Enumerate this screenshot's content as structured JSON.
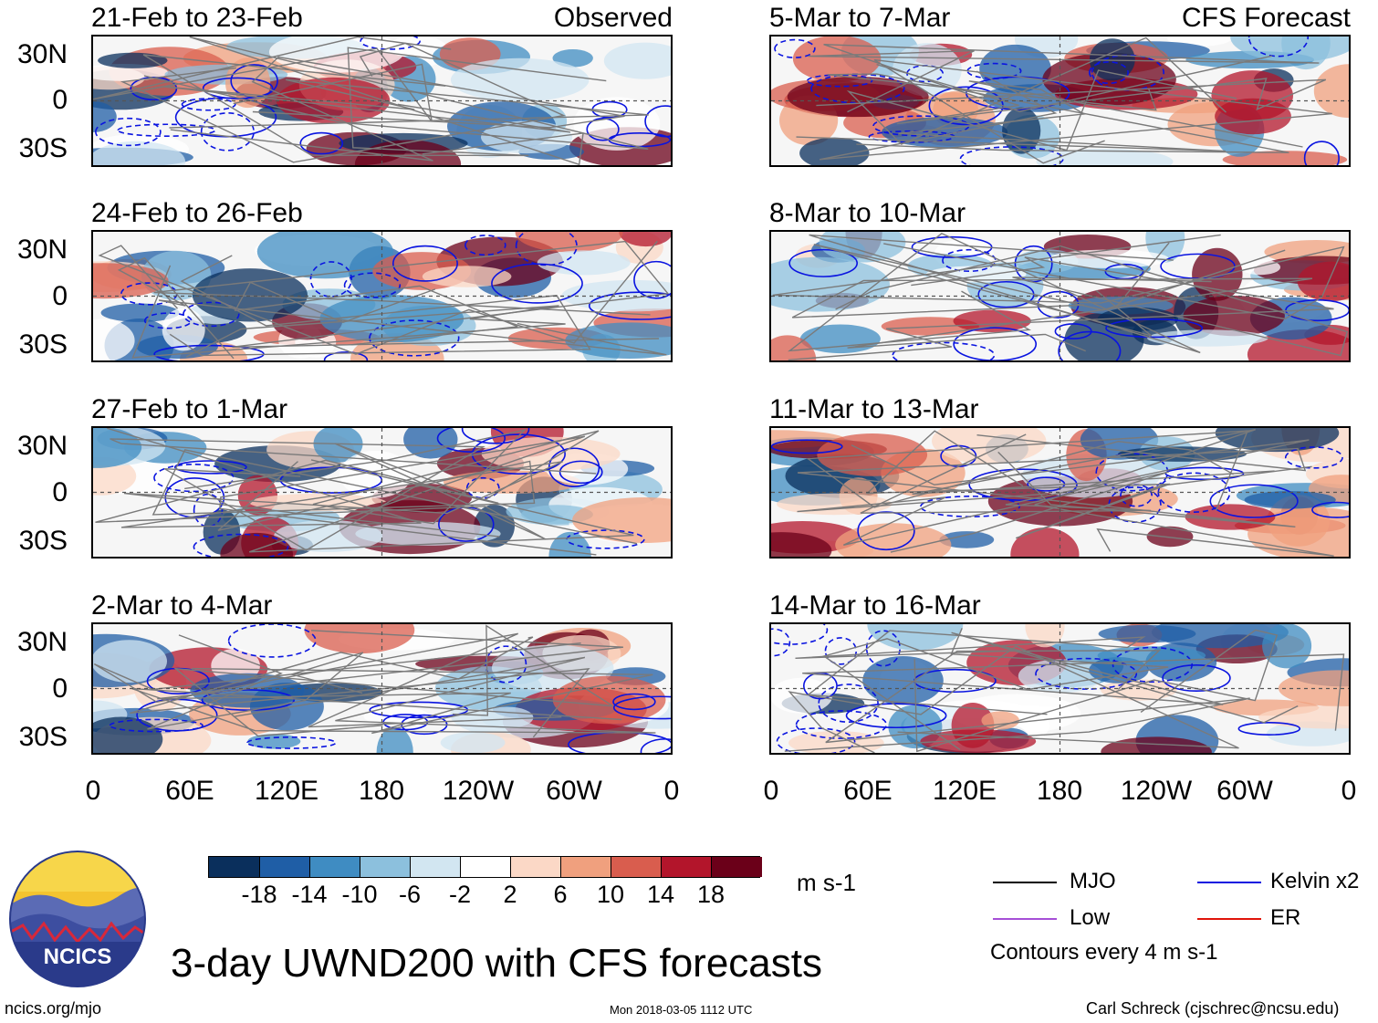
{
  "panels_left": [
    {
      "title": "21-Feb to 23-Feb",
      "tag": "Observed"
    },
    {
      "title": "24-Feb to 26-Feb",
      "tag": ""
    },
    {
      "title": "27-Feb to 1-Mar",
      "tag": ""
    },
    {
      "title": "2-Mar to 4-Mar",
      "tag": ""
    }
  ],
  "panels_right": [
    {
      "title": "5-Mar to 7-Mar",
      "tag": "CFS Forecast"
    },
    {
      "title": "8-Mar to 10-Mar",
      "tag": ""
    },
    {
      "title": "11-Mar to 13-Mar",
      "tag": ""
    },
    {
      "title": "14-Mar to 16-Mar",
      "tag": ""
    }
  ],
  "lat_labels": [
    "30N",
    "0",
    "30S"
  ],
  "lon_labels": [
    "0",
    "60E",
    "120E",
    "180",
    "120W",
    "60W",
    "0"
  ],
  "colorbar": {
    "colors": [
      "#0a2f5c",
      "#1f5ea6",
      "#3f8cc2",
      "#8cc0dd",
      "#d2e6f1",
      "#ffffff",
      "#fbd8c6",
      "#f0a07e",
      "#d95d4e",
      "#b3152b",
      "#6b0019"
    ],
    "labels": [
      "-18",
      "-14",
      "-10",
      "-6",
      "-2",
      "2",
      "6",
      "10",
      "14",
      "18"
    ],
    "units": "m s-1"
  },
  "legend": {
    "mjo": {
      "label": "MJO",
      "color": "#000000"
    },
    "kelvin": {
      "label": "Kelvin x2",
      "color": "#0a14e0"
    },
    "low": {
      "label": "Low",
      "color": "#a64fd6"
    },
    "er": {
      "label": "ER",
      "color": "#e0140a"
    },
    "note": "Contours every 4 m s-1"
  },
  "title": "3-day UWND200 with CFS forecasts",
  "logo_text": "NCICS",
  "footer": {
    "left": "ncics.org/mjo",
    "center": "Mon 2018-03-05 1112 UTC",
    "right": "Carl Schreck (cjschrec@ncsu.edu)"
  },
  "chart_data": {
    "type": "heatmap",
    "variable": "200-hPa zonal wind anomaly (UWND200), 3-day means",
    "units": "m s-1",
    "lon_axis": [
      "0",
      "60E",
      "120E",
      "180",
      "120W",
      "60W",
      "0"
    ],
    "lat_axis": [
      "30N",
      "0",
      "30S"
    ],
    "color_levels": [
      -18,
      -14,
      -10,
      -6,
      -2,
      2,
      6,
      10,
      14,
      18
    ],
    "contour_interval": 4,
    "observed_periods": [
      "21-Feb to 23-Feb",
      "24-Feb to 26-Feb",
      "27-Feb to 1-Mar",
      "2-Mar to 4-Mar"
    ],
    "forecast_periods": [
      "5-Mar to 7-Mar",
      "8-Mar to 10-Mar",
      "11-Mar to 13-Mar",
      "14-Mar to 16-Mar"
    ]
  }
}
